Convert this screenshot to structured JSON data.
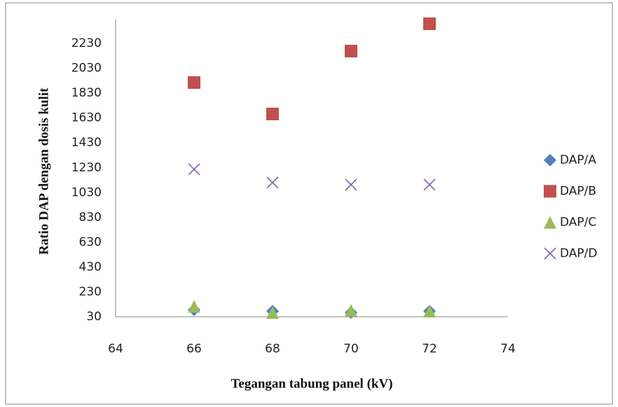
{
  "chart_data": {
    "type": "scatter",
    "x_label": "Tegangan tabung panel (kV)",
    "y_label": "Ratio DAP dengan dosis kulit",
    "x": [
      66,
      68,
      70,
      72
    ],
    "series": [
      {
        "name": "DAP/A",
        "color": "#4f81bd",
        "marker": "diamond",
        "values": [
          86,
          75,
          64,
          75
        ]
      },
      {
        "name": "DAP/B",
        "color": "#c0504d",
        "marker": "square",
        "values": [
          1915,
          1662,
          2168,
          2388
        ]
      },
      {
        "name": "DAP/C",
        "color": "#9bbb59",
        "marker": "triangle",
        "values": [
          114,
          64,
          81,
          75
        ]
      },
      {
        "name": "DAP/D",
        "color": "#8064a2",
        "marker": "x",
        "values": [
          1217,
          1110,
          1093,
          1093
        ]
      }
    ],
    "xlim": [
      64,
      74
    ],
    "xticks": [
      64,
      66,
      68,
      70,
      72,
      74
    ],
    "ylim": [
      30,
      2430
    ],
    "yticks": [
      30,
      230,
      430,
      630,
      830,
      1030,
      1230,
      1430,
      1630,
      1830,
      2030,
      2230
    ],
    "legend": "right"
  }
}
